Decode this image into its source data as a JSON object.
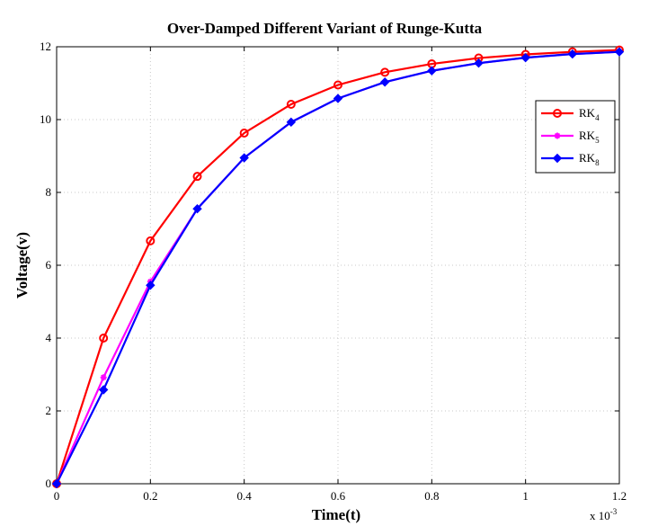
{
  "chart_data": {
    "type": "line",
    "title": "Over-Damped Different Variant of Runge-Kutta",
    "xlabel": "Time(t)",
    "ylabel": "Voltage(v)",
    "x_multiplier_label": "x 10",
    "x_multiplier_exponent": "-3",
    "xlim": [
      0,
      1.2
    ],
    "ylim": [
      0,
      12
    ],
    "x_ticks": [
      0,
      0.2,
      0.4,
      0.6,
      0.8,
      1,
      1.2
    ],
    "x_tick_labels": [
      "0",
      "0.2",
      "0.4",
      "0.6",
      "0.8",
      "1",
      "1.2"
    ],
    "y_ticks": [
      0,
      2,
      4,
      6,
      8,
      10,
      12
    ],
    "y_tick_labels": [
      "0",
      "2",
      "4",
      "6",
      "8",
      "10",
      "12"
    ],
    "grid": true,
    "legend_position": "top-right",
    "x": [
      0,
      0.1,
      0.2,
      0.3,
      0.4,
      0.5,
      0.6,
      0.7,
      0.8,
      0.9,
      1.0,
      1.1,
      1.2
    ],
    "series": [
      {
        "name": "RK4",
        "legend_base": "RK",
        "legend_sub": "4",
        "color": "#ff0000",
        "marker": "circle",
        "values": [
          0,
          4.0,
          6.67,
          8.44,
          9.63,
          10.42,
          10.95,
          11.3,
          11.53,
          11.69,
          11.79,
          11.86,
          11.91
        ]
      },
      {
        "name": "RK5",
        "legend_base": "RK",
        "legend_sub": "5",
        "color": "#ff00ff",
        "marker": "star",
        "values": [
          0,
          2.92,
          5.55,
          7.55,
          8.95,
          9.93,
          10.58,
          11.03,
          11.34,
          11.55,
          11.7,
          11.8,
          11.86
        ]
      },
      {
        "name": "RK8",
        "legend_base": "RK",
        "legend_sub": "8",
        "color": "#0000ff",
        "marker": "diamond",
        "values": [
          0,
          2.58,
          5.45,
          7.55,
          8.95,
          9.93,
          10.58,
          11.03,
          11.34,
          11.55,
          11.7,
          11.8,
          11.86
        ]
      }
    ]
  }
}
